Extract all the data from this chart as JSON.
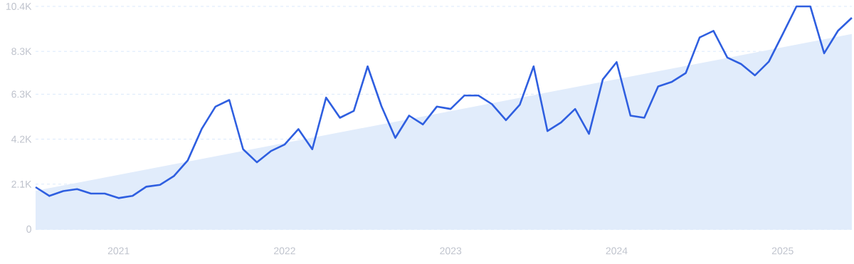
{
  "chart_data": {
    "type": "line",
    "x": [
      "2020-07",
      "2020-08",
      "2020-09",
      "2020-10",
      "2020-11",
      "2020-12",
      "2021-01",
      "2021-02",
      "2021-03",
      "2021-04",
      "2021-05",
      "2021-06",
      "2021-07",
      "2021-08",
      "2021-09",
      "2021-10",
      "2021-11",
      "2021-12",
      "2022-01",
      "2022-02",
      "2022-03",
      "2022-04",
      "2022-05",
      "2022-06",
      "2022-07",
      "2022-08",
      "2022-09",
      "2022-10",
      "2022-11",
      "2022-12",
      "2023-01",
      "2023-02",
      "2023-03",
      "2023-04",
      "2023-05",
      "2023-06",
      "2023-07",
      "2023-08",
      "2023-09",
      "2023-10",
      "2023-11",
      "2023-12",
      "2024-01",
      "2024-02",
      "2024-03",
      "2024-04",
      "2024-05",
      "2024-06",
      "2024-07",
      "2024-08",
      "2024-09",
      "2024-10",
      "2024-11",
      "2024-12",
      "2025-01",
      "2025-02",
      "2025-03",
      "2025-04",
      "2025-05",
      "2025-06"
    ],
    "series": [
      {
        "type": "area",
        "color": "#e1ecfb",
        "x": [
          "2020-07",
          "2025-06"
        ],
        "values": [
          1790,
          9110
        ]
      },
      {
        "color": "#2f5fe0",
        "values": [
          1960,
          1550,
          1780,
          1870,
          1660,
          1660,
          1450,
          1550,
          1980,
          2070,
          2480,
          3210,
          4670,
          5720,
          6030,
          3730,
          3120,
          3640,
          3950,
          4670,
          3730,
          6140,
          5200,
          5520,
          7600,
          5740,
          4260,
          5300,
          4890,
          5720,
          5610,
          6240,
          6240,
          5830,
          5090,
          5810,
          7600,
          4580,
          4990,
          5610,
          4450,
          6990,
          7800,
          5300,
          5200,
          6660,
          6880,
          7290,
          8950,
          9260,
          8010,
          7710,
          7180,
          7820,
          9100,
          10400,
          10400,
          8210,
          9260,
          9870
        ]
      }
    ],
    "xlim": [
      "2020-07",
      "2025-06"
    ],
    "xticks": [
      {
        "value": "2021-01",
        "label": "2021"
      },
      {
        "value": "2022-01",
        "label": "2022"
      },
      {
        "value": "2023-01",
        "label": "2023"
      },
      {
        "value": "2024-01",
        "label": "2024"
      },
      {
        "value": "2025-01",
        "label": "2025"
      }
    ],
    "ylim": [
      0,
      10400
    ],
    "yticks": [
      0,
      {
        "value": 2100,
        "label": "2.1K"
      },
      {
        "value": 4200,
        "label": "4.2K"
      },
      {
        "value": 6300,
        "label": "6.3K"
      },
      {
        "value": 8300,
        "label": "8.3K"
      },
      {
        "value": 10400,
        "label": "10.4K"
      }
    ],
    "grid": "y",
    "marker": "none",
    "line_style": "solid"
  }
}
